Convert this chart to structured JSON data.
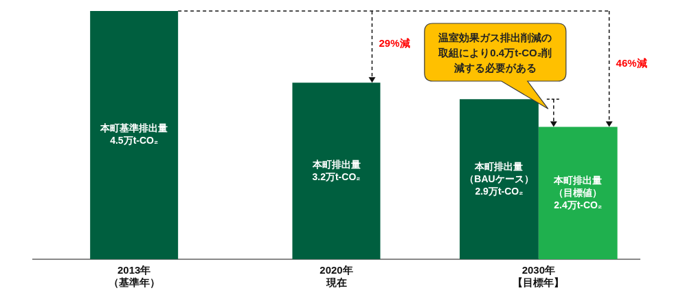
{
  "chart_data": {
    "type": "bar",
    "categories": [
      "2013年（基準年）",
      "2020年現在",
      "2030年【目標年】"
    ],
    "series": [
      {
        "color": "#005f3f",
        "values": [
          4.5,
          3.2,
          2.9
        ],
        "value_labels": [
          "本町基準排出量4.5万t-CO₂",
          "本町排出量3.2万t-CO₂",
          "本町排出量（BAUケース）2.9万t-CO₂"
        ]
      },
      {
        "color": "#1fb04e",
        "values": [
          null,
          null,
          2.4
        ],
        "value_labels": [
          null,
          null,
          "本町排出量（目標値）2.4万t-CO₂"
        ]
      }
    ],
    "annotations": [
      "29%減",
      "46%減",
      {
        "text": "温室効果ガス排出削減の取組により0.4万t-CO₂削減する必要がある",
        "x": "2030年【目標年】",
        "y": 2.9
      }
    ],
    "grid": false,
    "legend": false
  }
}
